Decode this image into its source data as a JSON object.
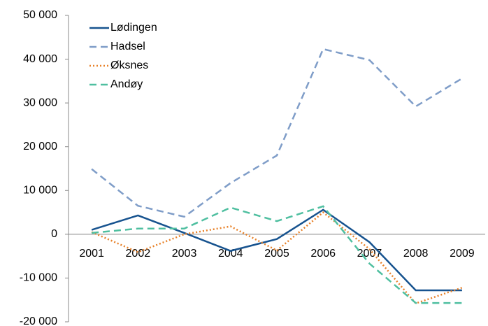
{
  "chart_data": {
    "type": "line",
    "categories": [
      "2001",
      "2002",
      "2003",
      "2004",
      "2005",
      "2006",
      "2007",
      "2008",
      "2009"
    ],
    "series": [
      {
        "name": "Lødingen",
        "color": "#17538f",
        "dash": "solid",
        "values": [
          1000,
          4300,
          300,
          -3800,
          -1100,
          5600,
          -1800,
          -12800,
          -12800
        ]
      },
      {
        "name": "Hadsel",
        "color": "#7f9dc8",
        "dash": "dashed",
        "values": [
          14900,
          6500,
          4000,
          11700,
          18000,
          42300,
          39800,
          29200,
          35600
        ]
      },
      {
        "name": "Øksnes",
        "color": "#e8822a",
        "dash": "dotted",
        "values": [
          500,
          -4100,
          0,
          1800,
          -3700,
          5000,
          -3400,
          -15800,
          -12200
        ]
      },
      {
        "name": "Andøy",
        "color": "#4fbfa0",
        "dash": "dashed",
        "values": [
          300,
          1300,
          1300,
          6100,
          3000,
          6400,
          -6700,
          -15700,
          -15700
        ]
      }
    ],
    "ylim": [
      -20000,
      50000
    ],
    "yticks": [
      {
        "value": -20000,
        "label": "-20 000"
      },
      {
        "value": -10000,
        "label": "-10 000"
      },
      0,
      {
        "value": 10000,
        "label": "10 000"
      },
      {
        "value": 20000,
        "label": "20 000"
      },
      {
        "value": 30000,
        "label": "30 000"
      },
      {
        "value": 40000,
        "label": "40 000"
      },
      {
        "value": 50000,
        "label": "50 000"
      }
    ],
    "grid": false,
    "legend": "top-left"
  }
}
